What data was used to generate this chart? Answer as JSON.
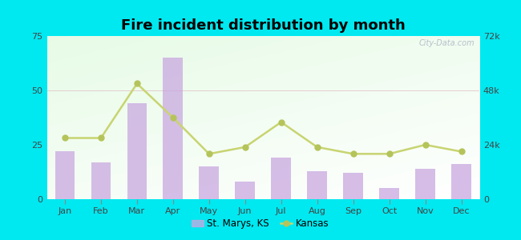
{
  "title": "Fire incident distribution by month",
  "months": [
    "Jan",
    "Feb",
    "Mar",
    "Apr",
    "May",
    "Jun",
    "Jul",
    "Aug",
    "Sep",
    "Oct",
    "Nov",
    "Dec"
  ],
  "st_marys_values": [
    22,
    17,
    44,
    65,
    15,
    8,
    19,
    13,
    12,
    5,
    14,
    16
  ],
  "kansas_values": [
    27000,
    27000,
    51000,
    36000,
    20000,
    23000,
    34000,
    23000,
    20000,
    20000,
    24000,
    21000
  ],
  "bar_color": "#c9a8e0",
  "line_color": "#c8d470",
  "line_marker_color": "#b5c45a",
  "left_ylim": [
    0,
    75
  ],
  "right_ylim": [
    0,
    72000
  ],
  "left_yticks": [
    0,
    25,
    50,
    75
  ],
  "right_yticks": [
    0,
    24000,
    48000,
    72000
  ],
  "right_yticklabels": [
    "0",
    "24k",
    "48k",
    "72k"
  ],
  "outer_bg": "#00e8f0",
  "legend_st_marys": "St. Marys, KS",
  "legend_kansas": "Kansas",
  "watermark": "City-Data.com"
}
